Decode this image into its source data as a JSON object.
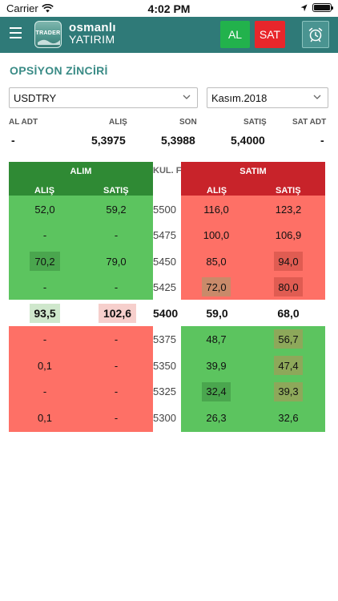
{
  "status_bar": {
    "carrier": "Carrier",
    "time": "4:02 PM"
  },
  "header": {
    "logo_badge_text": "TRADER",
    "brand_line1": "osmanlı",
    "brand_line2": "YATIRIM",
    "buy_label": "AL",
    "sell_label": "SAT",
    "icons": {
      "menu": "hamburger-icon",
      "alarm": "alarm-clock-icon"
    }
  },
  "page": {
    "title": "OPSİYON ZİNCİRİ"
  },
  "filters": {
    "symbol": "USDTRY",
    "expiry": "Kasım.2018"
  },
  "summary": {
    "headers": [
      "AL ADT",
      "ALIŞ",
      "SON",
      "SATIŞ",
      "SAT ADT"
    ],
    "values": [
      "-",
      "5,3975",
      "5,3988",
      "5,4000",
      "-"
    ]
  },
  "chain": {
    "alim_title": "ALIM",
    "satim_title": "SATIM",
    "strike_header": "KUL. FİYAT",
    "sub_headers": {
      "alim_bid": "ALIŞ",
      "alim_ask": "SATIŞ",
      "satim_bid": "ALIŞ",
      "satim_ask": "SATIŞ"
    },
    "upper_rows": [
      {
        "alim_bid": "52,0",
        "alim_ask": "59,2",
        "strike": "5500",
        "satim_bid": "116,0",
        "satim_ask": "123,2"
      },
      {
        "alim_bid": "-",
        "alim_ask": "-",
        "strike": "5475",
        "satim_bid": "100,0",
        "satim_ask": "106,9"
      },
      {
        "alim_bid": "70,2",
        "alim_ask": "79,0",
        "strike": "5450",
        "satim_bid": "85,0",
        "satim_ask": "94,0"
      },
      {
        "alim_bid": "-",
        "alim_ask": "-",
        "strike": "5425",
        "satim_bid": "72,0",
        "satim_ask": "80,0"
      }
    ],
    "mid_row": {
      "alim_bid": "93,5",
      "alim_ask": "102,6",
      "strike": "5400",
      "satim_bid": "59,0",
      "satim_ask": "68,0"
    },
    "lower_rows": [
      {
        "alim_bid": "-",
        "alim_ask": "-",
        "strike": "5375",
        "satim_bid": "48,7",
        "satim_ask": "56,7"
      },
      {
        "alim_bid": "0,1",
        "alim_ask": "-",
        "strike": "5350",
        "satim_bid": "39,9",
        "satim_ask": "47,4"
      },
      {
        "alim_bid": "-",
        "alim_ask": "-",
        "strike": "5325",
        "satim_bid": "32,4",
        "satim_ask": "39,3"
      },
      {
        "alim_bid": "0,1",
        "alim_ask": "-",
        "strike": "5300",
        "satim_bid": "26,3",
        "satim_ask": "32,6"
      }
    ]
  },
  "colors": {
    "header_bg": "#2f7a78",
    "buy_green": "#22b24c",
    "sell_red": "#e8262b",
    "cell_green": "#5cc45f",
    "cell_red": "#fe7066",
    "title_teal": "#3a8b86"
  }
}
